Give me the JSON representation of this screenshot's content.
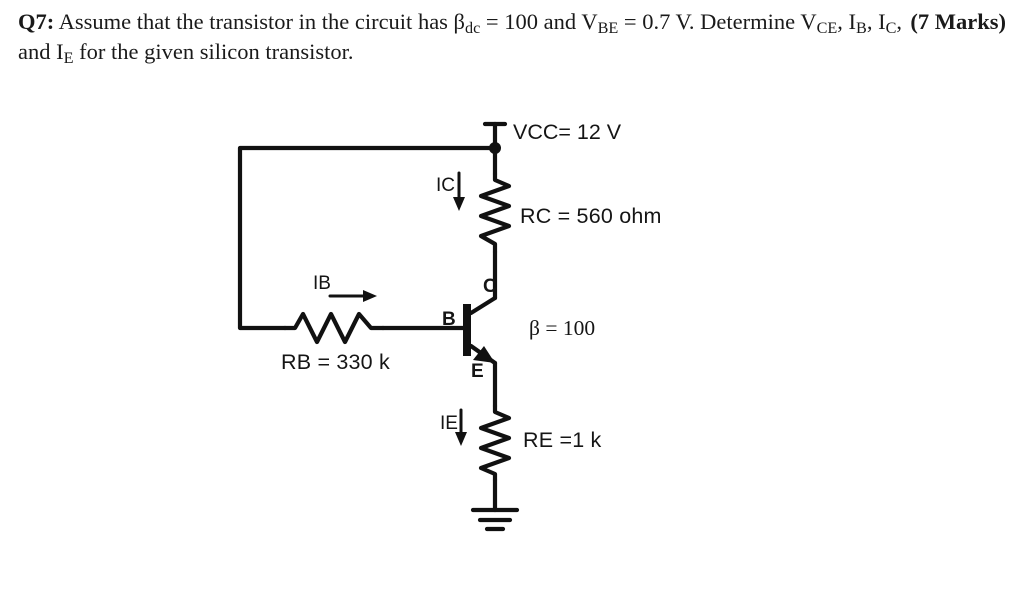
{
  "question": {
    "label": "Q7:",
    "body_html": "Assume that the transistor in the circuit has β<sub>dc</sub> = 100 and V<sub>BE</sub> = 0.7 V. Determine V<sub>CE</sub>, I<sub>B</sub>, I<sub>C</sub>, and I<sub>E</sub> for the given silicon transistor.",
    "marks": "(7 Marks)"
  },
  "circuit": {
    "vcc": "VCC= 12 V",
    "rc": "RC = 560 ohm",
    "beta": "β = 100",
    "rb": "RB = 330 k",
    "re": "RE =1 k",
    "ic": "IC",
    "ib": "IB",
    "ie": "IE",
    "b": "B",
    "c": "C",
    "e": "E"
  },
  "style": {
    "background": "#ffffff",
    "text_color": "#1a1a1a",
    "stroke_color": "#111111",
    "font_family": "Times New Roman",
    "label_font_family": "Arial",
    "question_fontsize_pt": 16,
    "label_fontsize_pt": 15
  }
}
